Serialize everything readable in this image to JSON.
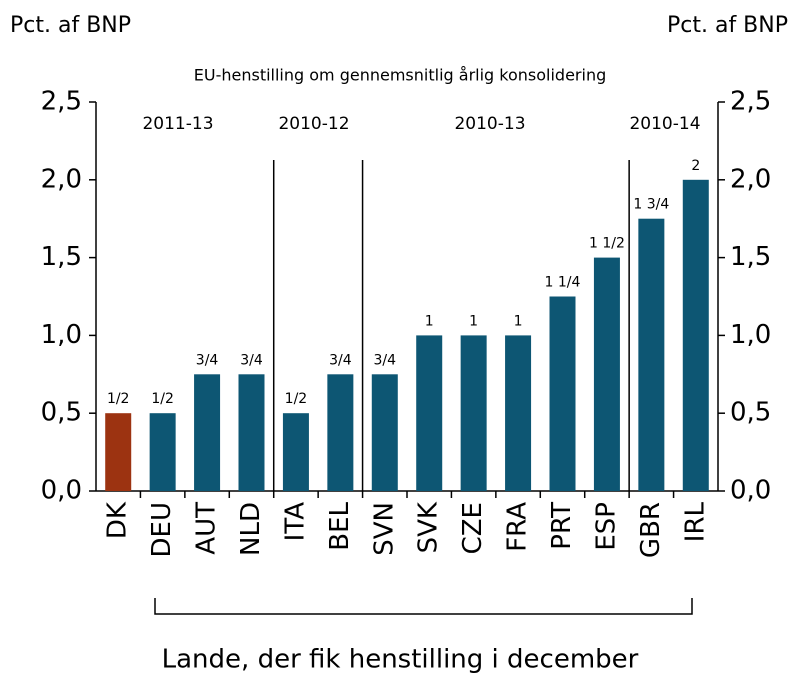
{
  "chart_data": {
    "type": "bar",
    "title": "EU-henstilling om gennemsnitlig årlig konsolidering",
    "y_label": "Pct. af BNP",
    "y2_label": "Pct. af BNP",
    "x_label": "Lande, der fik henstilling i december",
    "groups": [
      "2011-13",
      "2010-12",
      "2010-13",
      "2010-14"
    ],
    "categories": [
      "DK",
      "DEU",
      "AUT",
      "NLD",
      "ITA",
      "BEL",
      "SVN",
      "SVK",
      "CZE",
      "FRA",
      "PRT",
      "ESP",
      "GBR",
      "IRL"
    ],
    "values": [
      0.5,
      0.5,
      0.75,
      0.75,
      0.5,
      0.75,
      0.75,
      1,
      1,
      1,
      1.25,
      1.5,
      1.75,
      2
    ],
    "value_labels": [
      "1/2",
      "1/2",
      "3/4",
      "3/4",
      "1/2",
      "3/4",
      "3/4",
      "1",
      "1",
      "1",
      "1 1/4",
      "1 1/2",
      "1 3/4",
      "2"
    ],
    "colors": [
      "#9c3311",
      "#0d5673",
      "#0d5673",
      "#0d5673",
      "#0d5673",
      "#0d5673",
      "#0d5673",
      "#0d5673",
      "#0d5673",
      "#0d5673",
      "#0d5673",
      "#0d5673",
      "#0d5673",
      "#0d5673"
    ],
    "ylim": [
      0,
      2.5
    ],
    "yticks": [
      {
        "value": 0,
        "label": "0,0"
      },
      {
        "value": 0.5,
        "label": "0,5"
      },
      {
        "value": 1,
        "label": "1,0"
      },
      {
        "value": 1.5,
        "label": "1,5"
      },
      {
        "value": 2,
        "label": "2,0"
      },
      {
        "value": 2.5,
        "label": "2,5"
      }
    ],
    "y2lim": [
      0,
      2.5
    ],
    "y2ticks": [
      {
        "value": 0,
        "label": "0,0"
      },
      {
        "value": 0.5,
        "label": "0,5"
      },
      {
        "value": 1,
        "label": "1,0"
      },
      {
        "value": 1.5,
        "label": "1,5"
      },
      {
        "value": 2,
        "label": "2,0"
      },
      {
        "value": 2.5,
        "label": "2,5"
      }
    ]
  }
}
